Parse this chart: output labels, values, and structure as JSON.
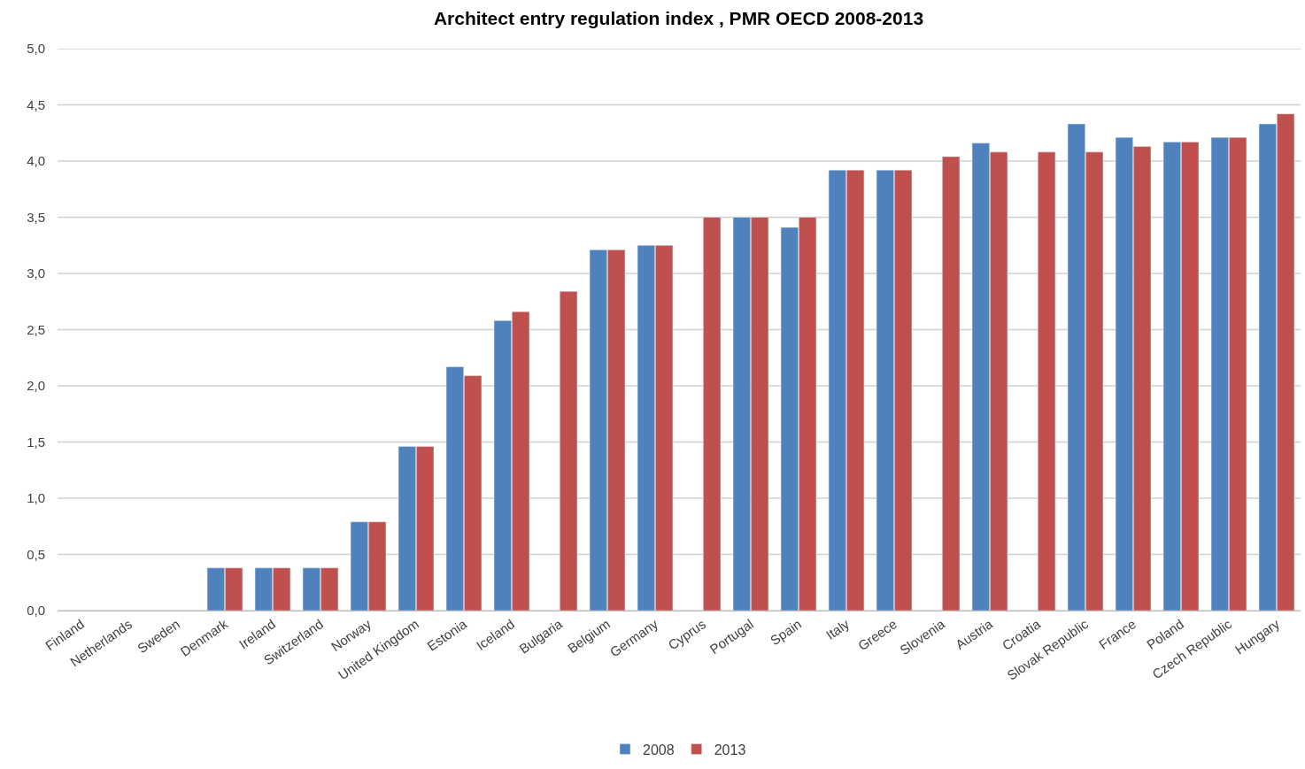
{
  "chart_data": {
    "type": "bar",
    "title": "Architect entry regulation index , PMR OECD 2008-2013",
    "categories": [
      "Finland",
      "Netherlands",
      "Sweden",
      "Denmark",
      "Ireland",
      "Switzerland",
      "Norway",
      "United Kingdom",
      "Estonia",
      "Iceland",
      "Bulgaria",
      "Belgium",
      "Germany",
      "Cyprus",
      "Portugal",
      "Spain",
      "Italy",
      "Greece",
      "Slovenia",
      "Austria",
      "Croatia",
      "Slovak Republic",
      "France",
      "Poland",
      "Czech Republic",
      "Hungary"
    ],
    "series": [
      {
        "name": "2008",
        "color": "#4f81bd",
        "values": [
          null,
          null,
          null,
          0.38,
          0.38,
          0.38,
          0.79,
          1.46,
          2.17,
          2.58,
          null,
          3.21,
          3.25,
          null,
          3.5,
          3.41,
          3.92,
          3.92,
          null,
          4.16,
          null,
          4.33,
          4.21,
          4.17,
          4.21,
          4.33
        ]
      },
      {
        "name": "2013",
        "color": "#c0504d",
        "values": [
          null,
          null,
          null,
          0.38,
          0.38,
          0.38,
          0.79,
          1.46,
          2.09,
          2.66,
          2.84,
          3.21,
          3.25,
          3.5,
          3.5,
          3.5,
          3.92,
          3.92,
          4.04,
          4.08,
          4.08,
          4.08,
          4.13,
          4.17,
          4.21,
          4.42
        ]
      }
    ],
    "ylim": [
      0,
      5
    ],
    "yticks": [
      {
        "value": 0,
        "label": "0,0"
      },
      {
        "value": 0.5,
        "label": "0,5"
      },
      {
        "value": 1,
        "label": "1,0"
      },
      {
        "value": 1.5,
        "label": "1,5"
      },
      {
        "value": 2,
        "label": "2,0"
      },
      {
        "value": 2.5,
        "label": "2,5"
      },
      {
        "value": 3,
        "label": "3,0"
      },
      {
        "value": 3.5,
        "label": "3,5"
      },
      {
        "value": 4,
        "label": "4,0"
      },
      {
        "value": 4.5,
        "label": "4,5"
      },
      {
        "value": 5,
        "label": "5,0"
      }
    ],
    "grid": "y",
    "legend": "bottom"
  }
}
